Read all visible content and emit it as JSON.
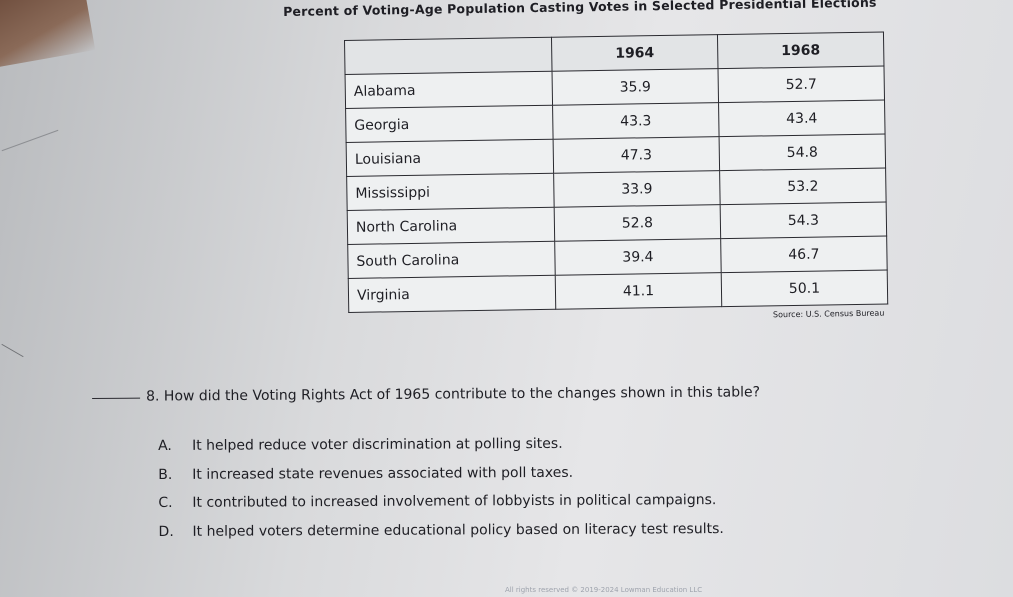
{
  "title": "Percent of Voting-Age Population Casting Votes in Selected Presidential Elections",
  "table": {
    "headers": [
      "",
      "1964",
      "1968"
    ],
    "rows": [
      {
        "state": "Alabama",
        "v1964": "35.9",
        "v1968": "52.7"
      },
      {
        "state": "Georgia",
        "v1964": "43.3",
        "v1968": "43.4"
      },
      {
        "state": "Louisiana",
        "v1964": "47.3",
        "v1968": "54.8"
      },
      {
        "state": "Mississippi",
        "v1964": "33.9",
        "v1968": "53.2"
      },
      {
        "state": "North Carolina",
        "v1964": "52.8",
        "v1968": "54.3"
      },
      {
        "state": "South Carolina",
        "v1964": "39.4",
        "v1968": "46.7"
      },
      {
        "state": "Virginia",
        "v1964": "41.1",
        "v1968": "50.1"
      }
    ],
    "source": "Source: U.S. Census Bureau"
  },
  "question": {
    "text": "8. How did the Voting Rights Act of 1965 contribute to the changes shown in this table?",
    "choices": [
      {
        "letter": "A.",
        "text": "It helped reduce voter discrimination at polling sites."
      },
      {
        "letter": "B.",
        "text": "It increased state revenues associated with poll taxes."
      },
      {
        "letter": "C.",
        "text": "It contributed to increased involvement of lobbyists in political campaigns."
      },
      {
        "letter": "D.",
        "text": "It helped voters determine educational policy based on literacy test results."
      }
    ]
  },
  "footer": "All rights reserved © 2019-2024 Lowman Education LLC"
}
